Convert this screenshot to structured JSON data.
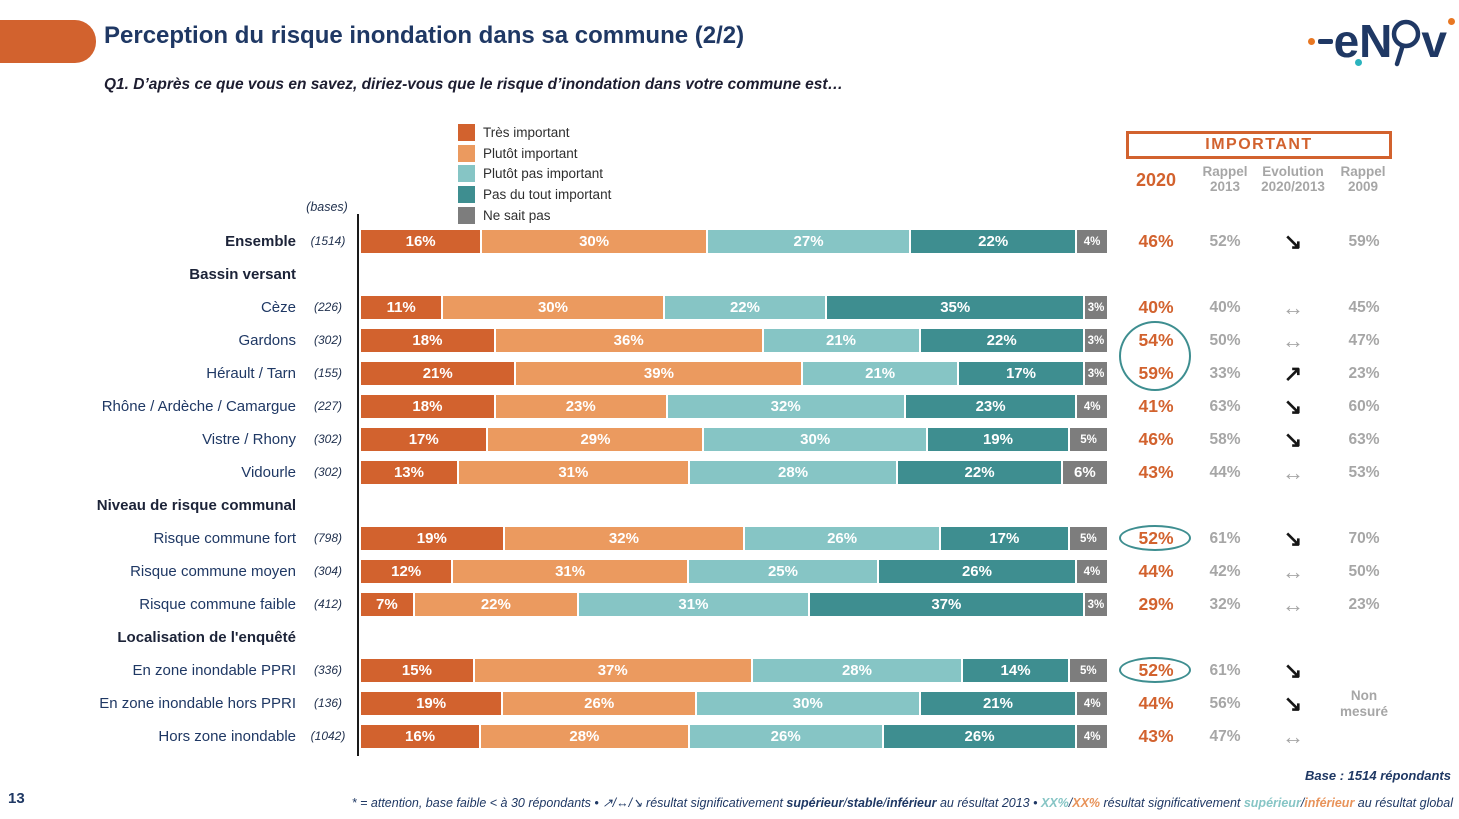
{
  "header": {
    "title": "Perception du risque inondation dans sa commune (2/2)"
  },
  "question": "Q1. D’après ce que vous en savez, diriez-vous que le risque d’inondation dans votre commune est…",
  "logo": {
    "e": "e",
    "n": "N",
    "v": "v",
    "name": "enov"
  },
  "bases_label": "(bases)",
  "table_header": {
    "box_label": "IMPORTANT",
    "col1": "2020",
    "col2_l1": "Rappel",
    "col2_l2": "2013",
    "col3_l1": "Evolution",
    "col3_l2": "2020/2013",
    "col4_l1": "Rappel",
    "col4_l2": "2009"
  },
  "evolution_glyphs": {
    "up": "↗",
    "stable": "↔",
    "down": "↘"
  },
  "colors": {
    "accent_orange": "#D2622E",
    "navy": "#1F3864",
    "gray_header": "#A6A6A6",
    "circle_teal": "#3E8E90"
  },
  "chart_data": {
    "type": "bar",
    "stacked": true,
    "orientation": "horizontal",
    "unit": "%",
    "series": [
      "Très important",
      "Plutôt important",
      "Plutôt pas important",
      "Pas du tout important",
      "Ne sait pas"
    ],
    "series_colors": [
      "#D2622E",
      "#EB9A5F",
      "#86C5C5",
      "#3E8E90",
      "#7D7D7D"
    ],
    "rows": [
      {
        "type": "data",
        "label": "Ensemble",
        "bold": true,
        "base": "(1514)",
        "values": [
          16,
          30,
          27,
          22,
          4
        ],
        "v2020": "46%",
        "v2013": "52%",
        "evo": "down",
        "v2009": "59%"
      },
      {
        "type": "group",
        "label": "Bassin versant"
      },
      {
        "type": "data",
        "label": "Cèze",
        "base": "(226)",
        "values": [
          11,
          30,
          22,
          35,
          3
        ],
        "v2020": "40%",
        "v2013": "40%",
        "evo": "stable",
        "v2009": "45%"
      },
      {
        "type": "data",
        "label": "Gardons",
        "base": "(302)",
        "values": [
          18,
          36,
          21,
          22,
          3
        ],
        "v2020": "54%",
        "v2013": "50%",
        "evo": "stable",
        "v2009": "47%"
      },
      {
        "type": "data",
        "label": "Hérault / Tarn",
        "base": "(155)",
        "values": [
          21,
          39,
          21,
          17,
          3
        ],
        "v2020": "59%",
        "v2013": "33%",
        "evo": "up",
        "v2009": "23%"
      },
      {
        "type": "data",
        "label": "Rhône / Ardèche / Camargue",
        "base": "(227)",
        "values": [
          18,
          23,
          32,
          23,
          4
        ],
        "v2020": "41%",
        "v2013": "63%",
        "evo": "down",
        "v2009": "60%"
      },
      {
        "type": "data",
        "label": "Vistre / Rhony",
        "base": "(302)",
        "values": [
          17,
          29,
          30,
          19,
          5
        ],
        "v2020": "46%",
        "v2013": "58%",
        "evo": "down",
        "v2009": "63%"
      },
      {
        "type": "data",
        "label": "Vidourle",
        "base": "(302)",
        "values": [
          13,
          31,
          28,
          22,
          6
        ],
        "v2020": "43%",
        "v2013": "44%",
        "evo": "stable",
        "v2009": "53%"
      },
      {
        "type": "group",
        "label": "Niveau de risque communal"
      },
      {
        "type": "data",
        "label": "Risque commune fort",
        "base": "(798)",
        "values": [
          19,
          32,
          26,
          17,
          5
        ],
        "v2020": "52%",
        "v2013": "61%",
        "evo": "down",
        "v2009": "70%"
      },
      {
        "type": "data",
        "label": "Risque commune moyen",
        "base": "(304)",
        "values": [
          12,
          31,
          25,
          26,
          4
        ],
        "v2020": "44%",
        "v2013": "42%",
        "evo": "stable",
        "v2009": "50%"
      },
      {
        "type": "data",
        "label": "Risque commune faible",
        "base": "(412)",
        "values": [
          7,
          22,
          31,
          37,
          3
        ],
        "v2020": "29%",
        "v2013": "32%",
        "evo": "stable",
        "v2009": "23%"
      },
      {
        "type": "group",
        "label": "Localisation de l'enquêté"
      },
      {
        "type": "data",
        "label": "En zone inondable PPRI",
        "base": "(336)",
        "values": [
          15,
          37,
          28,
          14,
          5
        ],
        "v2020": "52%",
        "v2013": "61%",
        "evo": "down",
        "v2009": ""
      },
      {
        "type": "data",
        "label": "En zone inondable hors PPRI",
        "base": "(136)",
        "values": [
          19,
          26,
          30,
          21,
          4
        ],
        "v2020": "44%",
        "v2013": "56%",
        "evo": "down",
        "v2009": "Non\nmesuré"
      },
      {
        "type": "data",
        "label": "Hors zone inondable",
        "base": "(1042)",
        "values": [
          16,
          28,
          26,
          26,
          4
        ],
        "v2020": "43%",
        "v2013": "47%",
        "evo": "stable",
        "v2009": ""
      }
    ]
  },
  "highlights": {
    "circle_color": "#3E8E90",
    "circles": [
      {
        "row_start": 3,
        "row_end": 4
      },
      {
        "row_start": 9,
        "row_end": 9
      },
      {
        "row_start": 13,
        "row_end": 13
      }
    ]
  },
  "footer": {
    "base_note": "Base : 1514 répondants",
    "page_number": "13",
    "note_segments": [
      {
        "text": "* = attention, base faible < à 30 répondants • ↗/↔/↘  résultat significativement "
      },
      {
        "text": "supérieur",
        "bold": true
      },
      {
        "text": "/"
      },
      {
        "text": "stable",
        "bold": true
      },
      {
        "text": "/"
      },
      {
        "text": "inférieur",
        "bold": true
      },
      {
        "text": " au résultat 2013 • "
      },
      {
        "text": "XX%",
        "bold": true,
        "color": "#86C5C5"
      },
      {
        "text": "/"
      },
      {
        "text": "XX%",
        "bold": true,
        "color": "#E8935A"
      },
      {
        "text": " résultat significativement "
      },
      {
        "text": "supérieur",
        "bold": true,
        "color": "#86C5C5"
      },
      {
        "text": "/"
      },
      {
        "text": "inférieur",
        "bold": true,
        "color": "#E8935A"
      },
      {
        "text": " au résultat global"
      }
    ]
  }
}
